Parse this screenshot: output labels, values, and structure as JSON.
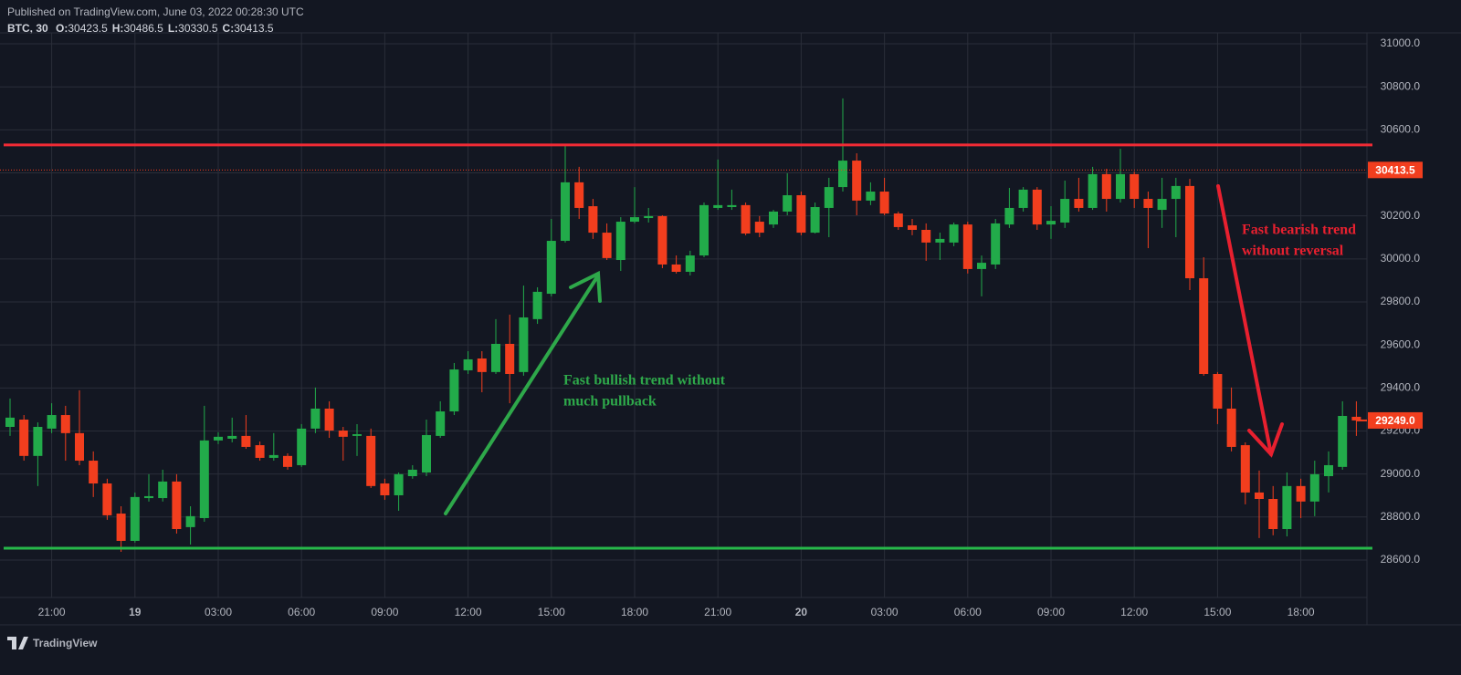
{
  "header": {
    "published": "Published on TradingView.com, June 03, 2022 00:28:30 UTC",
    "symbol": "BTC, 30",
    "ohlc": [
      {
        "label": "O:",
        "value": 30423.5
      },
      {
        "label": "H:",
        "value": 30486.5
      },
      {
        "label": "L:",
        "value": 30330.5
      },
      {
        "label": "C:",
        "value": 30413.5
      }
    ]
  },
  "branding": "TradingView",
  "chart_data": {
    "type": "candlestick",
    "categories": [
      null,
      null,
      null,
      "21:00",
      null,
      null,
      null,
      null,
      null,
      "19",
      null,
      null,
      null,
      null,
      null,
      "03:00",
      null,
      null,
      null,
      null,
      null,
      "06:00",
      null,
      null,
      null,
      null,
      null,
      "09:00",
      null,
      null,
      null,
      null,
      null,
      "12:00",
      null,
      null,
      null,
      null,
      null,
      "15:00",
      null,
      null,
      null,
      null,
      null,
      "18:00",
      null,
      null,
      null,
      null,
      null,
      "21:00",
      null,
      null,
      null,
      null,
      null,
      "20",
      null,
      null,
      null,
      null,
      null,
      "03:00",
      null,
      null,
      null,
      null,
      null,
      "06:00",
      null,
      null,
      null,
      null,
      null,
      "09:00",
      null,
      null,
      null,
      null,
      null,
      "12:00",
      null,
      null,
      null,
      null,
      null,
      "15:00",
      null,
      null,
      null,
      null,
      null,
      "18:00",
      null,
      null,
      null,
      null
    ],
    "bold_categories": [
      "19",
      "20"
    ],
    "open": [
      29219,
      29253,
      29084,
      29211,
      29274,
      29190,
      29062,
      28956,
      28816,
      28689,
      28888,
      28888,
      28965,
      28753,
      28795,
      29156,
      29164,
      29177,
      29134,
      29075,
      29084,
      29041,
      29211,
      29304,
      29202,
      29177,
      29177,
      28956,
      28901,
      28990,
      29007,
      29177,
      29291,
      29482,
      29537,
      29474,
      29605,
      29474,
      29720,
      29838,
      30084,
      30356,
      30245,
      30122,
      29995,
      30173,
      30190,
      30199,
      29974,
      29940,
      30016,
      30237,
      30241,
      30250,
      30173,
      30160,
      30220,
      30296,
      30122,
      30237,
      30334,
      30457,
      30271,
      30313,
      30211,
      30156,
      30135,
      30076,
      30076,
      30160,
      29953,
      29974,
      30160,
      30237,
      30322,
      30160,
      30169,
      30279,
      30237,
      30394,
      30279,
      30394,
      30279,
      30228,
      30279,
      30339,
      29910,
      29465,
      29304,
      29134,
      28914,
      28884,
      28744,
      28944,
      28872,
      28990,
      29033,
      29266
    ],
    "high": [
      29351,
      29274,
      29240,
      29329,
      29317,
      29389,
      29105,
      28978,
      28850,
      28914,
      28999,
      29020,
      28999,
      28850,
      29317,
      29194,
      29262,
      29274,
      29151,
      29190,
      29096,
      29232,
      29402,
      29338,
      29219,
      29232,
      29211,
      28978,
      29007,
      29041,
      29253,
      29338,
      29516,
      29571,
      29571,
      29720,
      29741,
      29876,
      29868,
      30186,
      30525,
      30428,
      30279,
      30165,
      30194,
      30334,
      30237,
      30203,
      30016,
      30038,
      30262,
      30462,
      30322,
      30262,
      30199,
      30228,
      30398,
      30313,
      30262,
      30377,
      30746,
      30491,
      30356,
      30377,
      30220,
      30186,
      30165,
      30122,
      30169,
      30173,
      30016,
      30186,
      30330,
      30334,
      30334,
      30245,
      30364,
      30377,
      30428,
      30419,
      30512,
      30406,
      30313,
      30377,
      30377,
      30372,
      30008,
      29474,
      29402,
      29147,
      29016,
      28944,
      29007,
      28978,
      29062,
      29105,
      29338,
      29338
    ],
    "low": [
      29177,
      29062,
      28944,
      29190,
      29062,
      29041,
      28893,
      28787,
      28638,
      28681,
      28872,
      28872,
      28723,
      28672,
      28778,
      29139,
      29147,
      29117,
      29062,
      29062,
      29020,
      29033,
      29190,
      29168,
      29062,
      29084,
      28935,
      28880,
      28829,
      28978,
      28990,
      29168,
      29274,
      29465,
      29380,
      29465,
      29329,
      29457,
      29698,
      29826,
      30076,
      30186,
      30093,
      29995,
      29944,
      30165,
      30169,
      29957,
      29932,
      29923,
      30008,
      30228,
      30228,
      30110,
      30101,
      30144,
      30203,
      30110,
      30118,
      30101,
      30313,
      30203,
      30250,
      30203,
      30135,
      30110,
      29991,
      29995,
      30059,
      29932,
      29826,
      29953,
      30144,
      30220,
      30135,
      30093,
      30144,
      30220,
      30228,
      30220,
      30262,
      30237,
      30050,
      30144,
      30101,
      29855,
      29457,
      29232,
      29105,
      28859,
      28702,
      28715,
      28710,
      28795,
      28804,
      28914,
      29020,
      29177
    ],
    "close": [
      29262,
      29084,
      29219,
      29274,
      29190,
      29062,
      28956,
      28808,
      28689,
      28893,
      28897,
      28965,
      28744,
      28804,
      29156,
      29173,
      29177,
      29126,
      29075,
      29088,
      29033,
      29211,
      29304,
      29202,
      29173,
      29185,
      28944,
      28901,
      28999,
      29020,
      29181,
      29291,
      29486,
      29533,
      29474,
      29605,
      29465,
      29728,
      29847,
      30084,
      30356,
      30237,
      30122,
      30004,
      30173,
      30194,
      30199,
      29974,
      29940,
      30016,
      30250,
      30250,
      30250,
      30118,
      30122,
      30220,
      30296,
      30122,
      30241,
      30334,
      30457,
      30271,
      30313,
      30211,
      30148,
      30135,
      30076,
      30093,
      30160,
      29953,
      29982,
      30165,
      30237,
      30322,
      30160,
      30177,
      30279,
      30237,
      30394,
      30279,
      30394,
      30279,
      30237,
      30279,
      30339,
      29910,
      29465,
      29304,
      29126,
      28914,
      28884,
      28744,
      28944,
      28872,
      28999,
      29041,
      29270,
      29249
    ],
    "up_color": "#22ab4a",
    "down_color": "#f23e1e",
    "ylim": [
      28426,
      31051
    ],
    "yticks": [
      {
        "value": 28600,
        "label": "28600.0"
      },
      {
        "value": 28800,
        "label": "28800.0"
      },
      {
        "value": 29000,
        "label": "29000.0"
      },
      {
        "value": 29200,
        "label": "29200.0"
      },
      {
        "value": 29400,
        "label": "29400.0"
      },
      {
        "value": 29600,
        "label": "29600.0"
      },
      {
        "value": 29800,
        "label": "29800.0"
      },
      {
        "value": 30000,
        "label": "30000.0"
      },
      {
        "value": 30200,
        "label": "30200.0"
      },
      {
        "value": 30400,
        "label": "30400.0"
      },
      {
        "value": 30600,
        "label": "30600.0"
      },
      {
        "value": 30800,
        "label": "30800.0"
      },
      {
        "value": 31000,
        "label": "31000.0"
      }
    ],
    "grid": true,
    "levels": [
      {
        "value": 30530,
        "color": "#f22b35"
      },
      {
        "value": 28655,
        "color": "#27b84a"
      }
    ],
    "price_labels": [
      {
        "value": 30413.5,
        "label": "30413.5",
        "color": "#f23e1e",
        "line": "dotted"
      },
      {
        "value": 29249,
        "label": "29249.0",
        "color": "#f23e1e",
        "line": "short"
      }
    ],
    "annotations": [
      {
        "lines": [
          "Fast bullish trend without",
          "much pullback"
        ],
        "color": "#2ea84a"
      },
      {
        "lines": [
          "Fast bearish trend",
          "without reversal"
        ],
        "color": "#e8202f"
      }
    ]
  }
}
